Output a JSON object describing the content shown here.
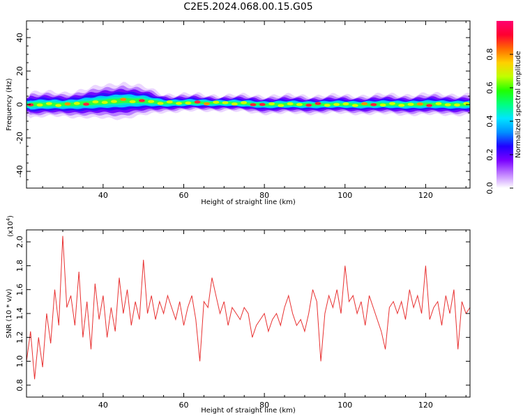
{
  "chart_data": [
    {
      "type": "heatmap",
      "title": "C2E5.2024.068.00.15.G05",
      "xlabel": "Height of straight line (km)",
      "ylabel": "Frequency (Hz)",
      "xlim": [
        21,
        131
      ],
      "ylim": [
        -50,
        50
      ],
      "xticks": [
        40,
        60,
        80,
        100,
        120
      ],
      "yticks": [
        40,
        20,
        0,
        -20,
        -40
      ],
      "colorbar": {
        "label": "Normalized spectral amplitude",
        "range": [
          0,
          1
        ],
        "ticks": [
          0.0,
          0.2,
          0.4,
          0.6,
          0.8
        ],
        "colors": [
          "#ffffff",
          "#c080ff",
          "#7a00ff",
          "#2000ff",
          "#0090ff",
          "#00e5ff",
          "#00ff80",
          "#20ff00",
          "#c0ff00",
          "#ffd000",
          "#ff6a00",
          "#ff0030",
          "#ff0070"
        ]
      },
      "band": [
        {
          "x": 22,
          "center": 0.0,
          "halfwidth": 5.0
        },
        {
          "x": 30,
          "center": 0.0,
          "halfwidth": 4.5
        },
        {
          "x": 38,
          "center": 1.0,
          "halfwidth": 6.0
        },
        {
          "x": 45,
          "center": 2.5,
          "halfwidth": 7.0
        },
        {
          "x": 50,
          "center": 2.0,
          "halfwidth": 5.5
        },
        {
          "x": 55,
          "center": 1.0,
          "halfwidth": 3.5
        },
        {
          "x": 70,
          "center": 1.0,
          "halfwidth": 3.0
        },
        {
          "x": 80,
          "center": 0.0,
          "halfwidth": 3.5
        },
        {
          "x": 100,
          "center": 0.0,
          "halfwidth": 3.5
        },
        {
          "x": 120,
          "center": 0.0,
          "halfwidth": 4.0
        },
        {
          "x": 131,
          "center": 0.0,
          "halfwidth": 4.0
        }
      ]
    },
    {
      "type": "line",
      "xlabel": "Height of straight line (km)",
      "ylabel": "SNR (10 * v/v)",
      "scale_note": "(x10",
      "scale_exp": "4",
      "xlim": [
        21,
        131
      ],
      "ylim": [
        0.7,
        2.1
      ],
      "xticks": [
        40,
        60,
        80,
        100,
        120
      ],
      "yticks": [
        0.8,
        1.0,
        1.2,
        1.4,
        1.6,
        1.8,
        2.0
      ],
      "color": "#e83030",
      "series": [
        {
          "name": "SNR",
          "x": [
            21,
            22,
            23,
            24,
            25,
            26,
            27,
            28,
            29,
            30,
            31,
            32,
            33,
            34,
            35,
            36,
            37,
            38,
            39,
            40,
            41,
            42,
            43,
            44,
            45,
            46,
            47,
            48,
            49,
            50,
            51,
            52,
            53,
            54,
            55,
            56,
            57,
            58,
            59,
            60,
            61,
            62,
            63,
            64,
            65,
            66,
            67,
            68,
            69,
            70,
            71,
            72,
            73,
            74,
            75,
            76,
            77,
            78,
            79,
            80,
            81,
            82,
            83,
            84,
            85,
            86,
            87,
            88,
            89,
            90,
            91,
            92,
            93,
            94,
            95,
            96,
            97,
            98,
            99,
            100,
            101,
            102,
            103,
            104,
            105,
            106,
            107,
            108,
            109,
            110,
            111,
            112,
            113,
            114,
            115,
            116,
            117,
            118,
            119,
            120,
            121,
            122,
            123,
            124,
            125,
            126,
            127,
            128,
            129,
            130,
            131
          ],
          "values": [
            1.0,
            1.25,
            0.85,
            1.2,
            0.95,
            1.4,
            1.15,
            1.6,
            1.3,
            2.05,
            1.45,
            1.55,
            1.3,
            1.75,
            1.2,
            1.5,
            1.1,
            1.65,
            1.35,
            1.55,
            1.2,
            1.45,
            1.25,
            1.7,
            1.4,
            1.6,
            1.3,
            1.5,
            1.35,
            1.85,
            1.4,
            1.55,
            1.35,
            1.5,
            1.4,
            1.55,
            1.45,
            1.35,
            1.5,
            1.3,
            1.45,
            1.55,
            1.35,
            1.0,
            1.5,
            1.45,
            1.7,
            1.55,
            1.4,
            1.5,
            1.3,
            1.45,
            1.4,
            1.35,
            1.45,
            1.4,
            1.2,
            1.3,
            1.35,
            1.4,
            1.25,
            1.35,
            1.4,
            1.3,
            1.45,
            1.55,
            1.4,
            1.3,
            1.35,
            1.25,
            1.4,
            1.6,
            1.5,
            1.0,
            1.4,
            1.55,
            1.45,
            1.6,
            1.4,
            1.8,
            1.5,
            1.55,
            1.4,
            1.5,
            1.3,
            1.55,
            1.45,
            1.35,
            1.25,
            1.1,
            1.45,
            1.5,
            1.4,
            1.5,
            1.35,
            1.6,
            1.45,
            1.55,
            1.4,
            1.8,
            1.35,
            1.45,
            1.5,
            1.3,
            1.55,
            1.4,
            1.6,
            1.1,
            1.5,
            1.4,
            1.45
          ]
        }
      ]
    }
  ]
}
